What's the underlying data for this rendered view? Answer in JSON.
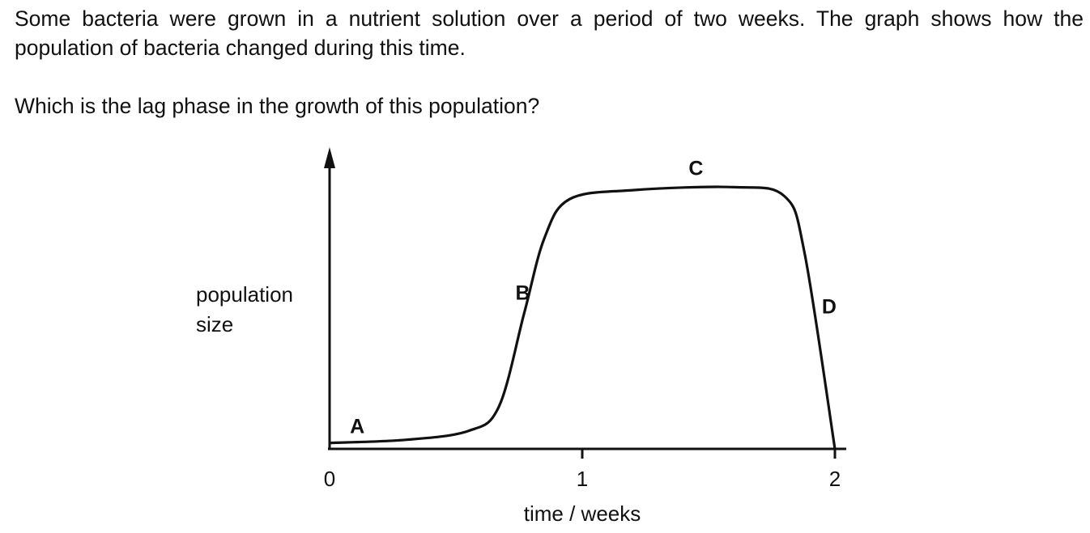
{
  "question": {
    "intro": "Some bacteria were grown in a nutrient solution over a period of two weeks. The graph shows how the population of bacteria changed during this time.",
    "prompt": "Which is the lag phase in the growth of this population?"
  },
  "chart_data": {
    "type": "line",
    "title": "",
    "xlabel": "time / weeks",
    "ylabel": "population size",
    "ylabel_lines": [
      "population",
      "size"
    ],
    "x_ticks": [
      "0",
      "1",
      "2"
    ],
    "xlim": [
      0,
      2
    ],
    "ylim": [
      0,
      1
    ],
    "grid": false,
    "y_scale_numbers_shown": false,
    "series": [
      {
        "points": [
          {
            "x": 0.0,
            "y": 0.02
          },
          {
            "x": 0.3,
            "y": 0.03
          },
          {
            "x": 0.55,
            "y": 0.06
          },
          {
            "x": 0.67,
            "y": 0.14
          },
          {
            "x": 0.77,
            "y": 0.45
          },
          {
            "x": 0.85,
            "y": 0.7
          },
          {
            "x": 0.95,
            "y": 0.83
          },
          {
            "x": 1.2,
            "y": 0.86
          },
          {
            "x": 1.6,
            "y": 0.87
          },
          {
            "x": 1.8,
            "y": 0.84
          },
          {
            "x": 1.88,
            "y": 0.65
          },
          {
            "x": 2.0,
            "y": 0.0
          }
        ]
      }
    ],
    "annotations": [
      {
        "label": "A",
        "x": 0.1,
        "y": 0.02
      },
      {
        "label": "B",
        "x": 0.79,
        "y": 0.48
      },
      {
        "label": "C",
        "x": 1.45,
        "y": 0.87
      },
      {
        "label": "D",
        "x": 1.91,
        "y": 0.45
      }
    ]
  }
}
